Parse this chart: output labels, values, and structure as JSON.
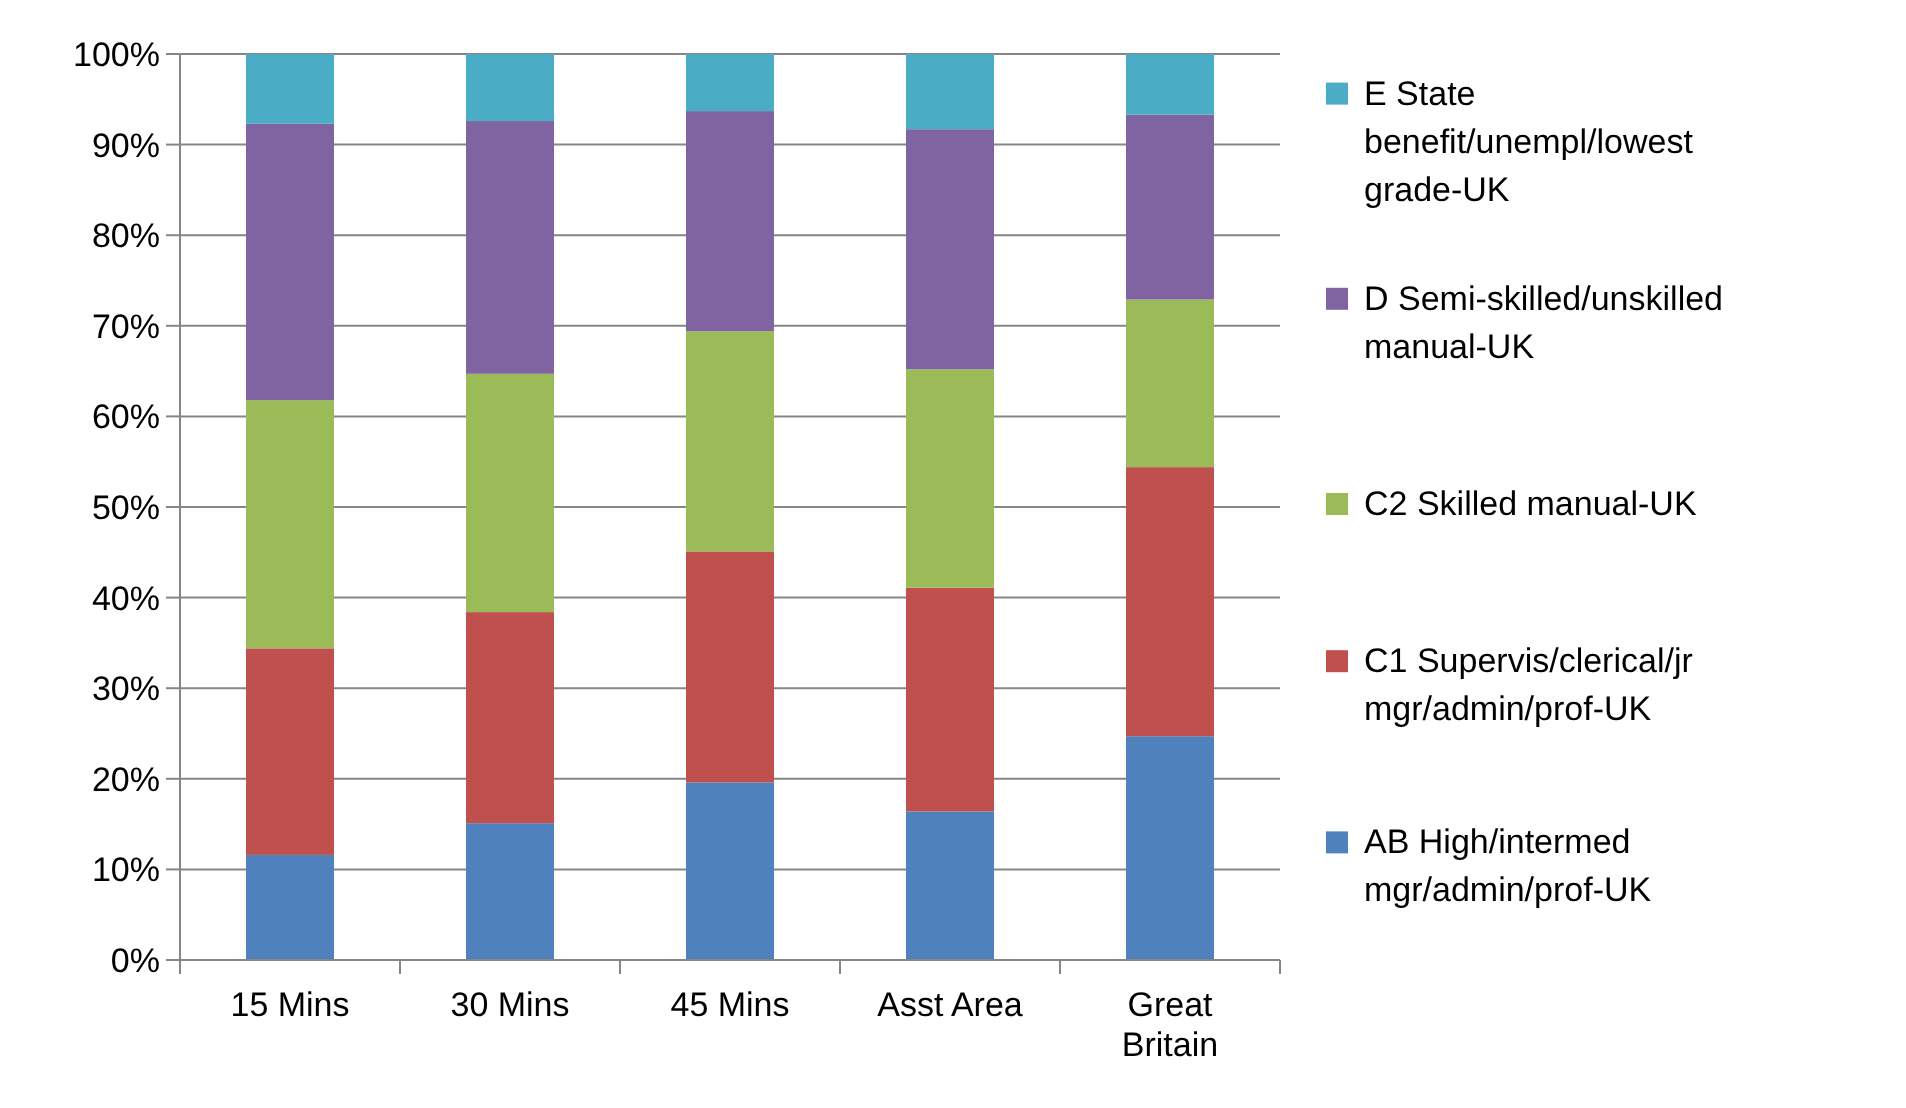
{
  "chart_data": {
    "type": "bar",
    "stacked": true,
    "categories": [
      "15 Mins",
      "30 Mins",
      "45 Mins",
      "Asst Area",
      "Great Britain"
    ],
    "series": [
      {
        "name": "AB High/intermed mgr/admin/prof-UK",
        "color": "#4f81bd",
        "values": [
          11.6,
          15.1,
          19.6,
          16.4,
          24.7
        ]
      },
      {
        "name": "C1 Supervis/clerical/jr mgr/admin/prof-UK",
        "color": "#c0504d",
        "values": [
          22.8,
          23.3,
          25.5,
          24.7,
          29.7
        ]
      },
      {
        "name": "C2 Skilled manual-UK",
        "color": "#9bbb59",
        "values": [
          27.4,
          26.3,
          24.3,
          24.1,
          18.5
        ]
      },
      {
        "name": "D Semi-skilled/unskilled manual-UK",
        "color": "#8064a2",
        "values": [
          30.5,
          27.9,
          24.3,
          26.5,
          20.4
        ]
      },
      {
        "name": "E State benefit/unempl/lowest grade-UK",
        "color": "#4bacc6",
        "values": [
          7.7,
          7.4,
          6.3,
          8.3,
          6.7
        ]
      }
    ],
    "ylim": [
      0,
      100
    ],
    "yticks": [
      {
        "value": 0,
        "label": "0%"
      },
      {
        "value": 10,
        "label": "10%"
      },
      {
        "value": 20,
        "label": "20%"
      },
      {
        "value": 30,
        "label": "30%"
      },
      {
        "value": 40,
        "label": "40%"
      },
      {
        "value": 50,
        "label": "50%"
      },
      {
        "value": 60,
        "label": "60%"
      },
      {
        "value": 70,
        "label": "70%"
      },
      {
        "value": 80,
        "label": "80%"
      },
      {
        "value": 90,
        "label": "90%"
      },
      {
        "value": 100,
        "label": "100%"
      }
    ],
    "grid": "y",
    "legend": "right"
  }
}
